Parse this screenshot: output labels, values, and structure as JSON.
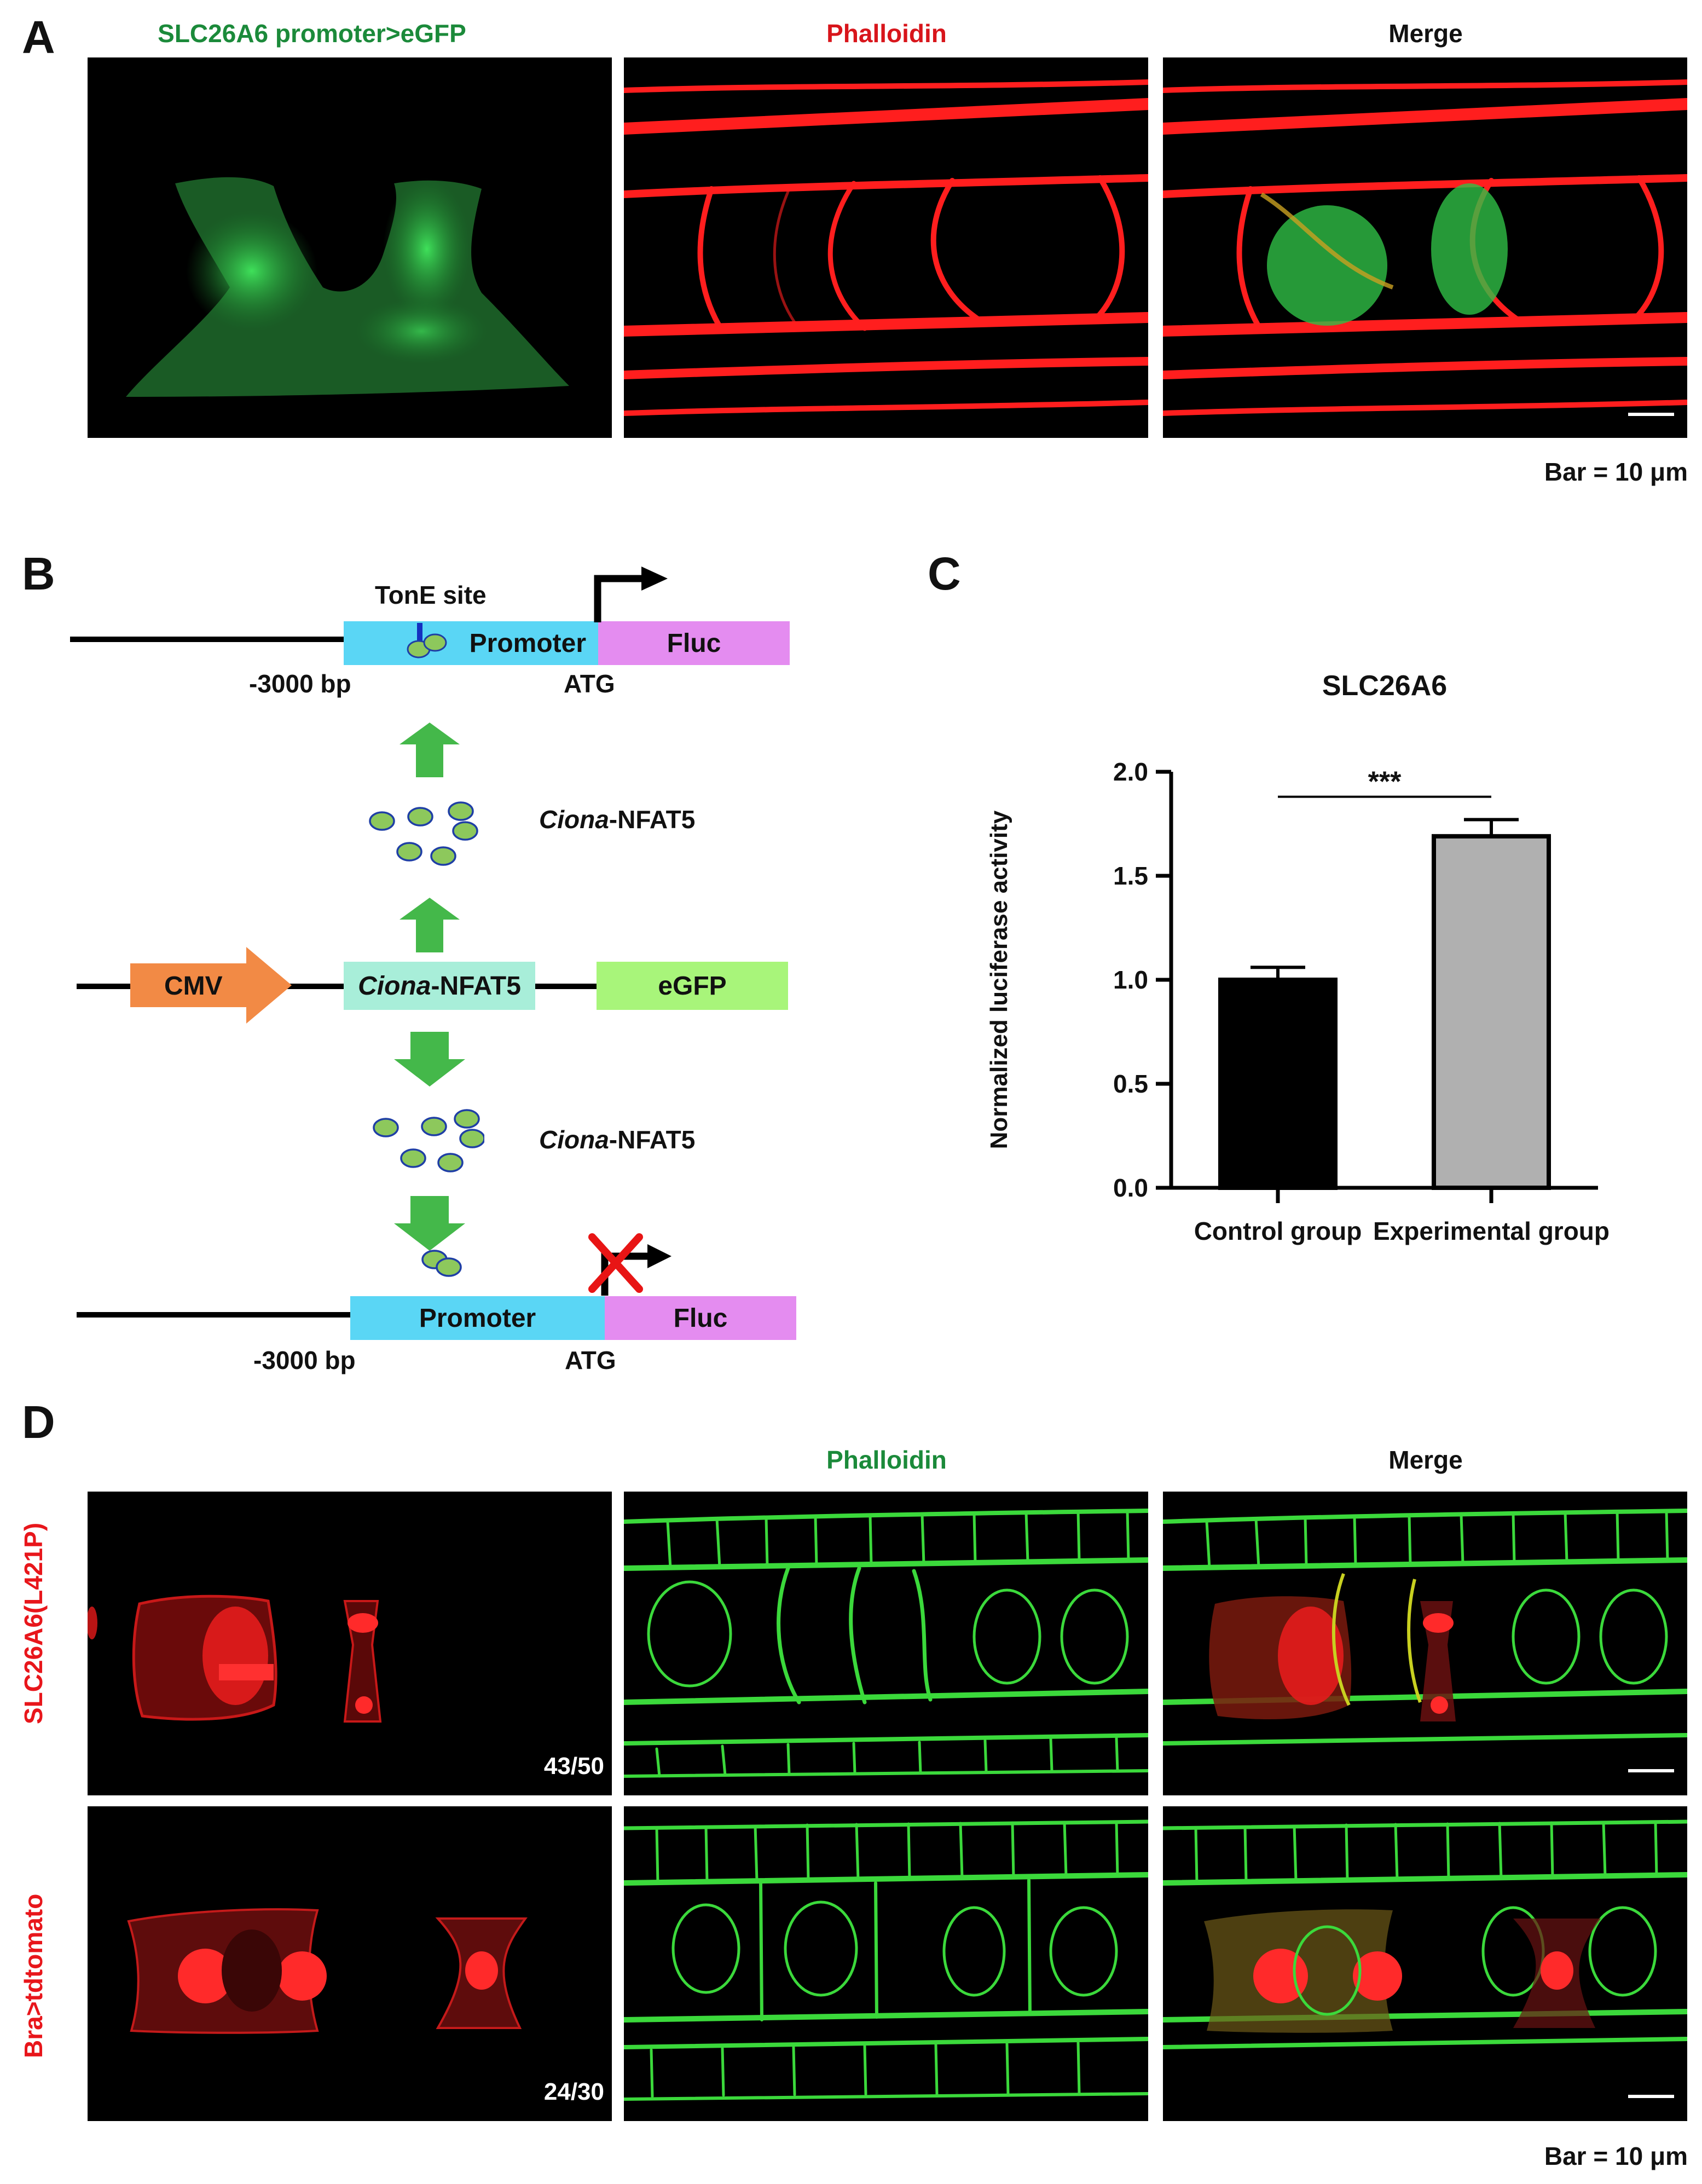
{
  "panel_a": {
    "label": "A",
    "titles": [
      "SLC26A6 promoter>eGFP",
      "Phalloidin",
      "Merge"
    ],
    "title_colors": [
      "#1b8a3a",
      "#d8151b",
      "#111111"
    ],
    "scale_text": "Bar = 10 μm"
  },
  "panel_b": {
    "label": "B",
    "tone_site": "TonE site",
    "promoter": "Promoter",
    "fluc": "Fluc",
    "bp": "-3000 bp",
    "atg": "ATG",
    "cmv": "CMV",
    "nfat_italic": "Ciona",
    "nfat_suffix": "-NFAT5",
    "egfp": "eGFP",
    "colors": {
      "promoter": "#5ad6f5",
      "fluc": "#e48cf0",
      "cmv": "#f28a45",
      "nfat_box": "#a8eed9",
      "egfp": "#a8f57a",
      "arrow": "#44b84a",
      "protein": "#8dc85c",
      "cross": "#e81515"
    }
  },
  "panel_c": {
    "label": "C",
    "significance": "***"
  },
  "chart_data": {
    "type": "bar",
    "title": "SLC26A6",
    "ylabel": "Normalized luciferase activity",
    "xlabel": "",
    "categories": [
      "Control group",
      "Experimental group"
    ],
    "values": [
      1.0,
      1.69
    ],
    "errors": [
      0.06,
      0.08
    ],
    "colors": [
      "#000000",
      "#b0b0b0"
    ],
    "ylim": [
      0,
      2.0
    ],
    "yticks": [
      "0.0",
      "0.5",
      "1.0",
      "1.5",
      "2.0"
    ],
    "ytick_values": [
      0,
      0.5,
      1.0,
      1.5,
      2.0
    ]
  },
  "panel_d": {
    "label": "D",
    "titles": [
      "Phalloidin",
      "Merge"
    ],
    "title_colors": [
      "#1b8a3a",
      "#111111"
    ],
    "rows": [
      {
        "label": "SLC26A6(L421P)",
        "count": "43/50"
      },
      {
        "label": "Bra>tdtomato",
        "count": "24/30"
      }
    ],
    "scale_text": "Bar = 10 μm"
  }
}
